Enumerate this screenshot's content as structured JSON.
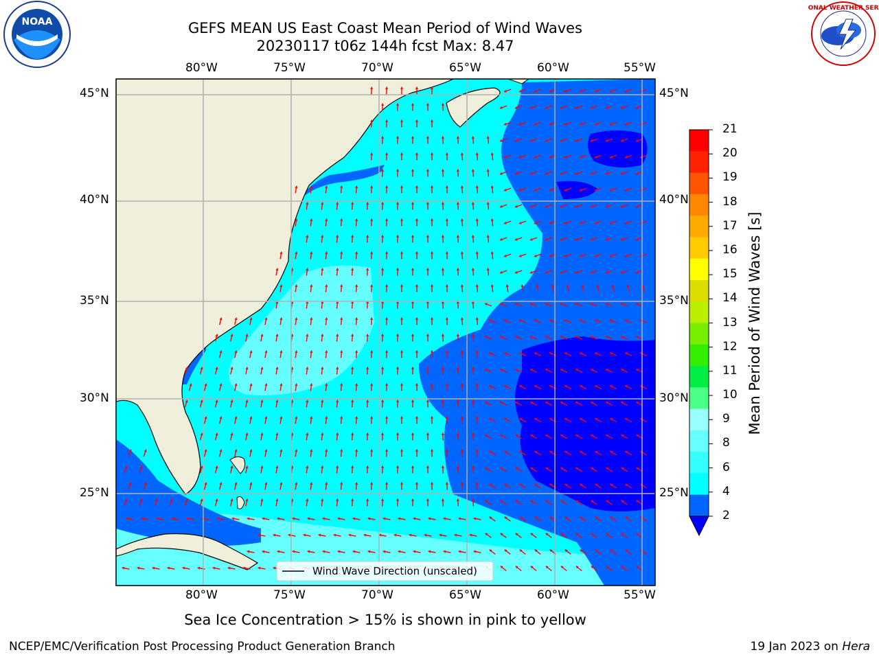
{
  "header": {
    "title_line1": "GEFS MEAN US East Coast Mean Period of Wind Waves",
    "title_line2": "20230117 t06z 144h fcst   Max: 8.47"
  },
  "logos": {
    "noaa_text": "NOAA",
    "nws_text": "NATIONAL WEATHER SERVICE"
  },
  "map": {
    "lon_labels": [
      "80°W",
      "75°W",
      "70°W",
      "65°W",
      "60°W",
      "55°W"
    ],
    "lat_labels": [
      "45°N",
      "40°N",
      "35°N",
      "30°N",
      "25°N"
    ],
    "legend_label": "Wind Wave Direction (unscaled)",
    "land_color": "#efefdb",
    "arrow_color": "#ff0000"
  },
  "colorbar": {
    "label": "Mean Period of Wind Waves [s]",
    "ticks": [
      "2",
      "4",
      "6",
      "8",
      "9",
      "10",
      "11",
      "12",
      "13",
      "14",
      "15",
      "16",
      "17",
      "18",
      "19",
      "20",
      "21"
    ],
    "colors": [
      "#0066ff",
      "#00ffff",
      "#33ffff",
      "#66ffff",
      "#99ffff",
      "#4cff88",
      "#00ee44",
      "#33ee00",
      "#77ee00",
      "#bbee00",
      "#dddd00",
      "#ffff00",
      "#ffcc00",
      "#ffaa00",
      "#ff8800",
      "#ff5500",
      "#ff2200",
      "#ff0000"
    ],
    "underflow_color": "#0000ff"
  },
  "footer": {
    "note": "Sea Ice Concentration > 15% is shown in pink to yellow",
    "left": "NCEP/EMC/Verification Post Processing Product Generation Branch",
    "right_date": "19 Jan 2023 on ",
    "right_host": "Hera"
  }
}
